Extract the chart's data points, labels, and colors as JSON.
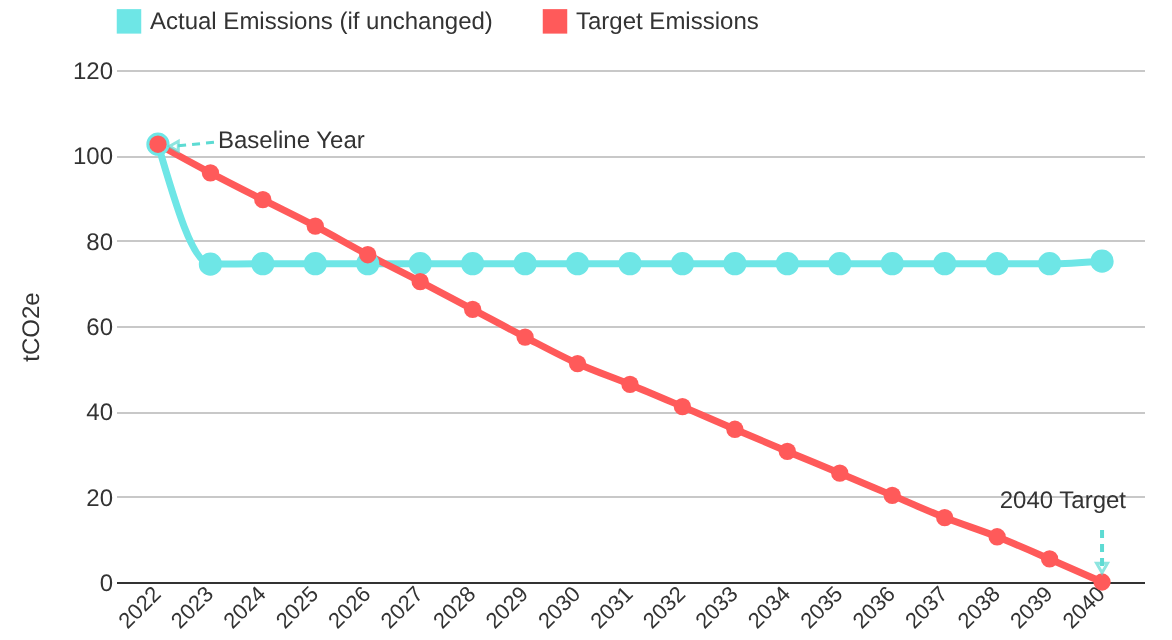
{
  "chart_data": {
    "type": "line",
    "ylabel": "tCO2e",
    "categories": [
      "2022",
      "2023",
      "2024",
      "2025",
      "2026",
      "2027",
      "2028",
      "2029",
      "2030",
      "2031",
      "2032",
      "2033",
      "2034",
      "2035",
      "2036",
      "2037",
      "2038",
      "2039",
      "2040"
    ],
    "series": [
      {
        "name": "Actual Emissions (if unchanged)",
        "color": "#6ee6e6",
        "values": [
          102.6,
          74.5,
          74.6,
          74.6,
          74.6,
          74.6,
          74.6,
          74.6,
          74.6,
          74.6,
          74.6,
          74.6,
          74.6,
          74.6,
          74.6,
          74.6,
          74.6,
          74.6,
          75.2
        ]
      },
      {
        "name": "Target Emissions",
        "color": "#ff5a5a",
        "values": [
          102.6,
          95.9,
          89.6,
          83.4,
          76.7,
          70.4,
          63.9,
          57.4,
          51.2,
          46.3,
          41.1,
          35.8,
          30.6,
          25.5,
          20.3,
          15.1,
          10.6,
          5.4,
          0
        ]
      }
    ],
    "ylim": [
      0,
      120
    ],
    "yticks": [
      0,
      20,
      40,
      60,
      80,
      100,
      120
    ],
    "grid": "y",
    "legend": "top",
    "marker": "circle",
    "line_style": "solid",
    "annotations": [
      {
        "text": "Baseline Year",
        "x": "2022",
        "y": 102.6
      },
      {
        "text": "2040 Target",
        "x": "2040",
        "y": 0
      }
    ]
  }
}
